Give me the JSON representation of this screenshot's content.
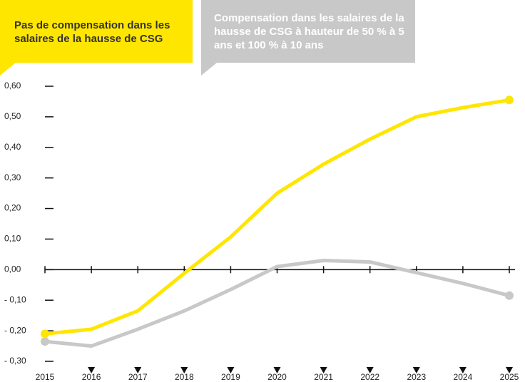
{
  "chart_data": {
    "type": "line",
    "x": [
      2015,
      2016,
      2017,
      2018,
      2019,
      2020,
      2021,
      2022,
      2023,
      2024,
      2025
    ],
    "series": [
      {
        "name": "Pas de compensation dans les salaires de la hausse de CSG",
        "color": "#ffe600",
        "values": [
          -0.21,
          -0.195,
          -0.135,
          -0.012,
          0.107,
          0.25,
          0.345,
          0.427,
          0.5,
          0.53,
          0.555
        ]
      },
      {
        "name": "Compensation dans les salaires de la hausse de CSG à hauteur de 50 % à 5 ans et 100 % à 10 ans",
        "color": "#c8c8c8",
        "values": [
          -0.235,
          -0.25,
          -0.195,
          -0.135,
          -0.065,
          0.01,
          0.03,
          0.025,
          -0.01,
          -0.045,
          -0.085
        ]
      }
    ],
    "xlim": [
      2015,
      2025
    ],
    "xticks": [
      2015,
      2016,
      2017,
      2018,
      2019,
      2020,
      2021,
      2022,
      2023,
      2024,
      2025
    ],
    "ylim": [
      -0.3,
      0.6
    ],
    "yticks": [
      {
        "value": -0.3,
        "label": "- 0,30"
      },
      {
        "value": -0.2,
        "label": "- 0,20"
      },
      {
        "value": -0.1,
        "label": "- 0,10"
      },
      {
        "value": 0,
        "label": "0,00"
      },
      {
        "value": 0.1,
        "label": "0,10"
      },
      {
        "value": 0.2,
        "label": "0,20"
      },
      {
        "value": 0.3,
        "label": "0,30"
      },
      {
        "value": 0.4,
        "label": "0,40"
      },
      {
        "value": 0.5,
        "label": "0,50"
      },
      {
        "value": 0.6,
        "label": "0,60"
      }
    ]
  }
}
